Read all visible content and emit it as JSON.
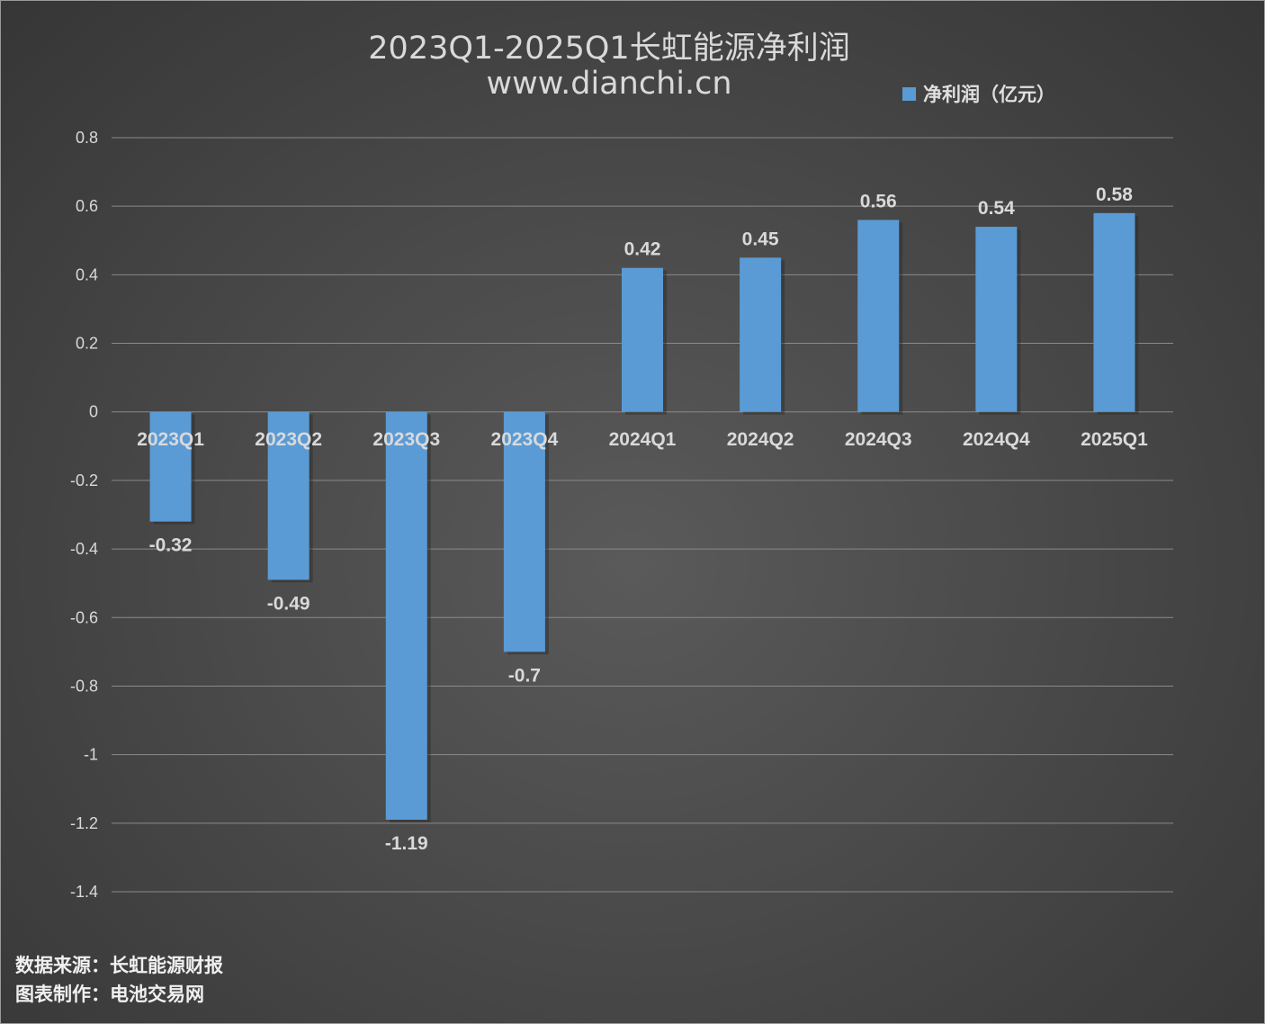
{
  "chart_data": {
    "type": "bar",
    "title": "2023Q1-2025Q1长虹能源净利润",
    "subtitle": "www.dianchi.cn",
    "categories": [
      "2023Q1",
      "2023Q2",
      "2023Q3",
      "2023Q4",
      "2024Q1",
      "2024Q2",
      "2024Q3",
      "2024Q4",
      "2025Q1"
    ],
    "series": [
      {
        "name": "净利润（亿元）",
        "values": [
          -0.32,
          -0.49,
          -1.19,
          -0.7,
          0.42,
          0.45,
          0.56,
          0.54,
          0.58
        ]
      }
    ],
    "data_labels": [
      "-0.32",
      "-0.49",
      "-1.19",
      "-0.7",
      "0.42",
      "0.45",
      "0.56",
      "0.54",
      "0.58"
    ],
    "y_ticks": [
      "0.8",
      "0.6",
      "0.4",
      "0.2",
      "0",
      "-0.2",
      "-0.4",
      "-0.6",
      "-0.8",
      "-1",
      "-1.2",
      "-1.4"
    ],
    "ylim": [
      -1.4,
      0.8
    ],
    "xlabel": "",
    "ylabel": "",
    "grid": true,
    "legend_position": "top-right"
  },
  "footer": {
    "source": "数据来源：长虹能源财报",
    "credit": "图表制作：电池交易网"
  },
  "colors": {
    "bar": "#5b9bd5",
    "background": "#454545",
    "grid": "#8a8a8a",
    "text": "#d9d9d9"
  }
}
